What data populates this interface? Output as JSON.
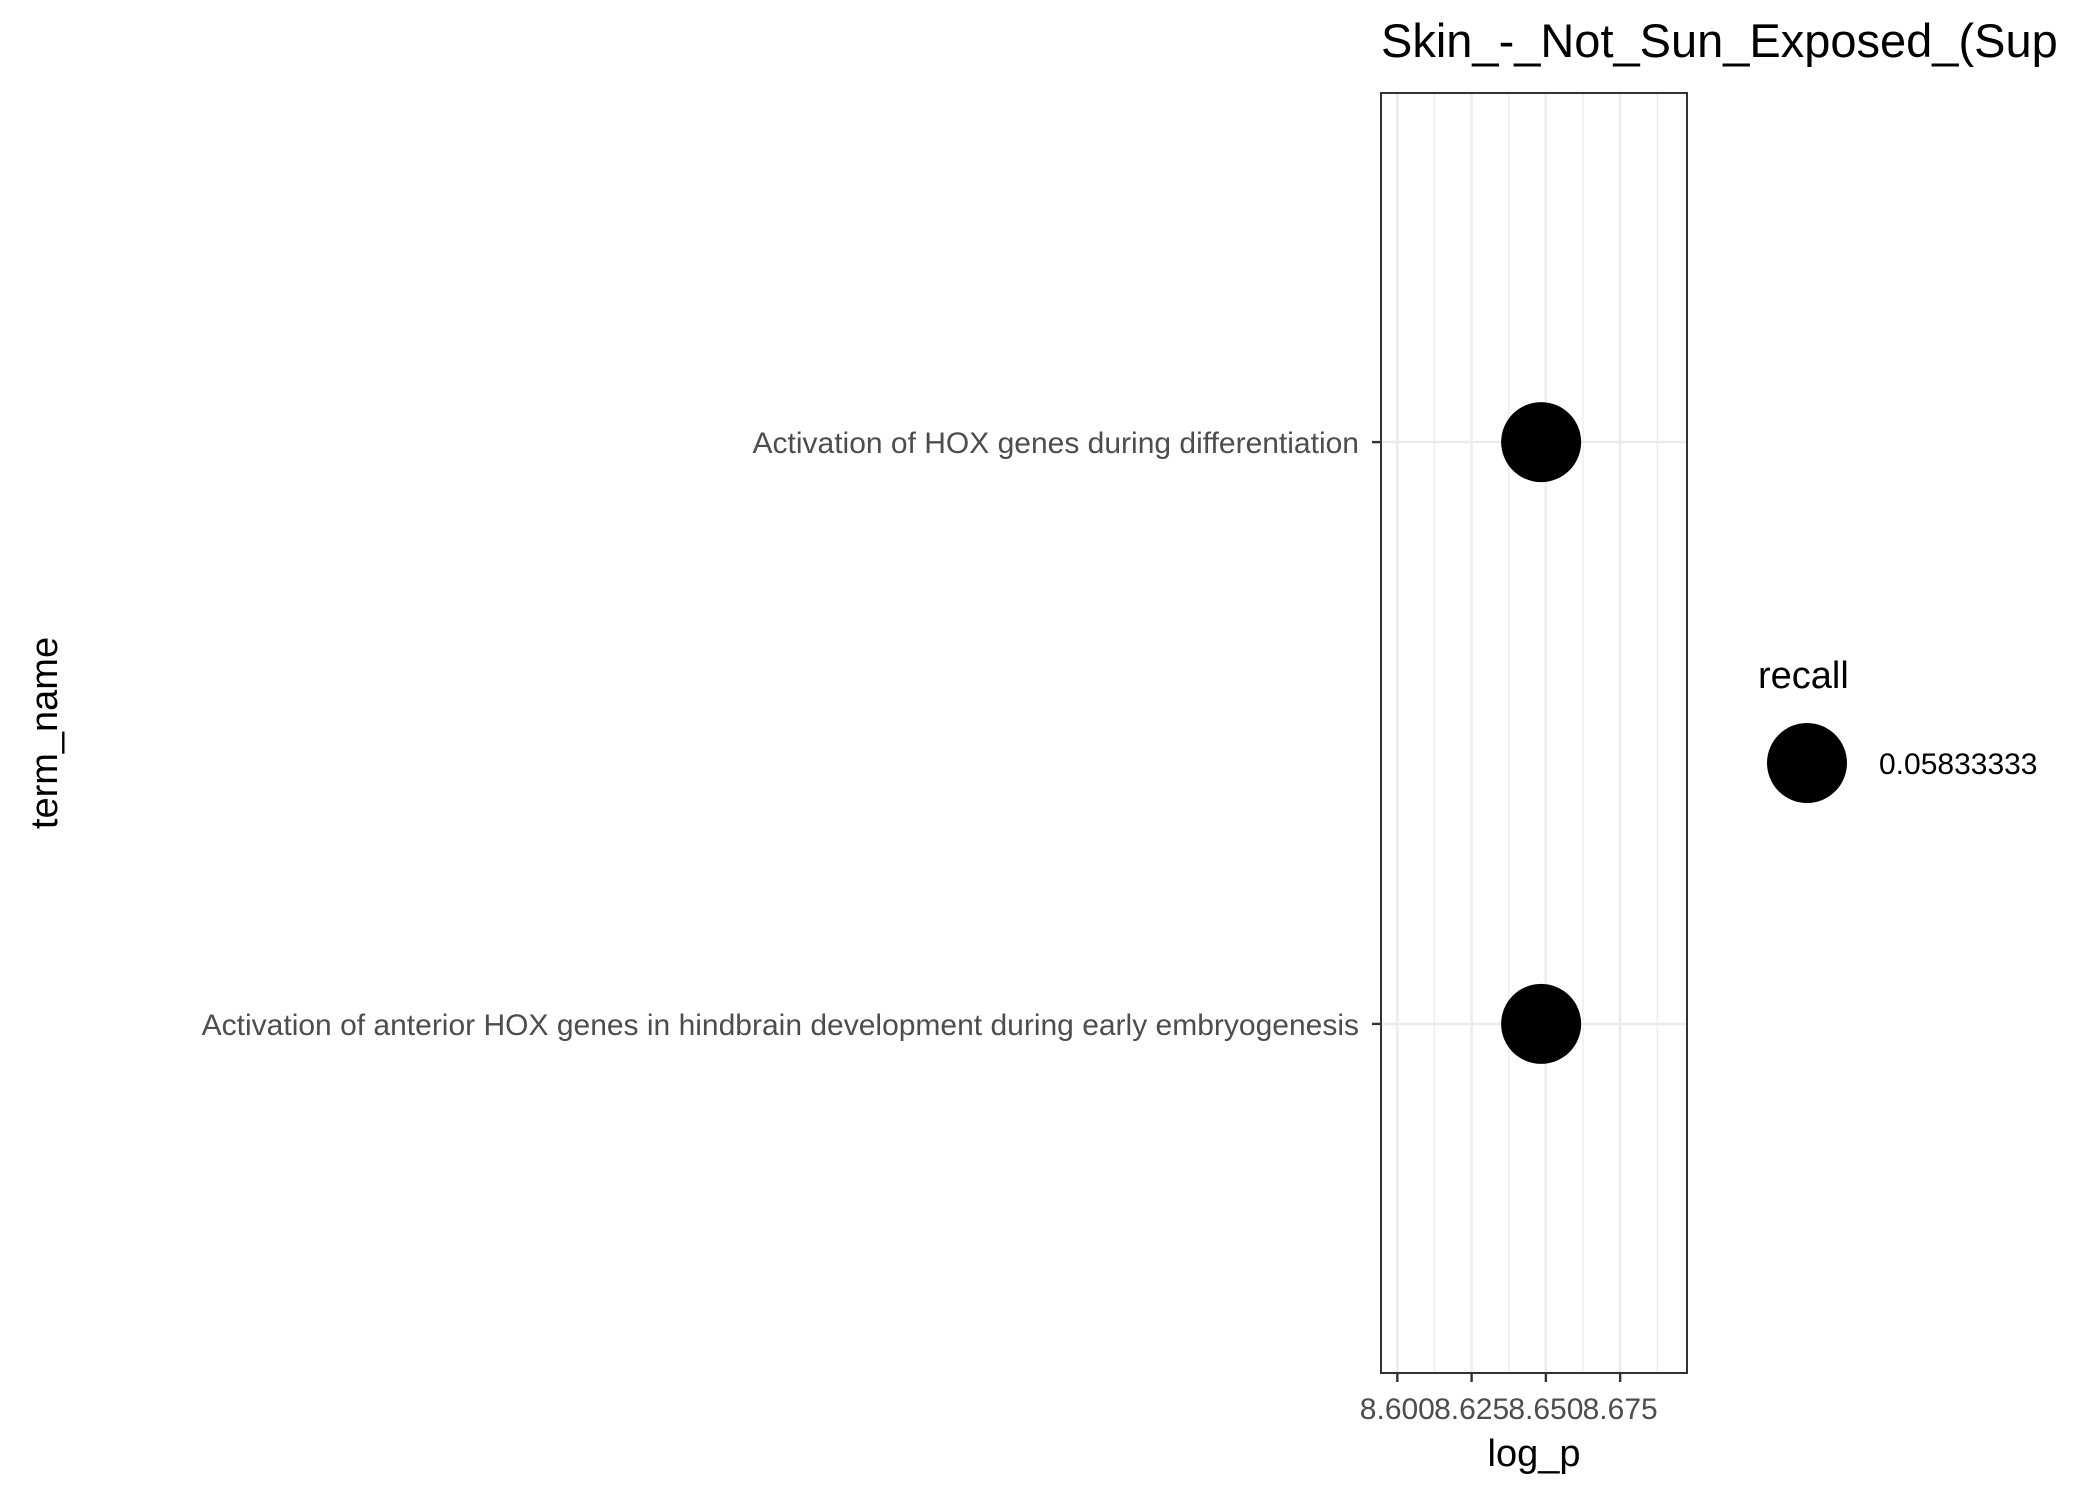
{
  "chart_data": {
    "type": "scatter",
    "title": "Skin_-_Not_Sun_Exposed_(Sup",
    "xlabel": "log_p",
    "ylabel": "term_name",
    "xlim": [
      8.5945,
      8.6975
    ],
    "x_ticks": [
      "8.600",
      "8.625",
      "8.650",
      "8.675"
    ],
    "x_tick_values": [
      8.6,
      8.625,
      8.65,
      8.675
    ],
    "categories": [
      "Activation of anterior HOX genes in hindbrain development during early embryogenesis",
      "Activation of HOX genes during differentiation"
    ],
    "points": [
      {
        "term": "Activation of HOX genes during differentiation",
        "x": 8.6484,
        "recall": 0.05833333
      },
      {
        "term": "Activation of anterior HOX genes in hindbrain development during early embryogenesis",
        "x": 8.6484,
        "recall": 0.05833333
      }
    ],
    "legend": {
      "title": "recall",
      "position": "right",
      "items": [
        "0.05833333"
      ]
    },
    "grid": true,
    "colors": {
      "point": "#000000",
      "grid": "#ebebeb",
      "panel_border": "#333333",
      "text": "#4d4d4d"
    }
  }
}
